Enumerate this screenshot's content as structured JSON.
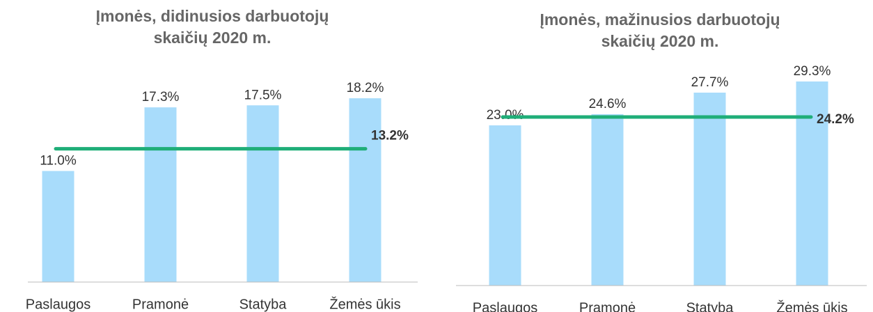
{
  "chart_data": [
    {
      "type": "bar",
      "title": [
        "Įmonės, didinusios darbuotojų",
        "skaičių 2020 m."
      ],
      "categories": [
        "Paslaugos",
        "Pramonė",
        "Statyba",
        "Žemės ūkis"
      ],
      "values": [
        11.0,
        17.3,
        17.5,
        18.2
      ],
      "value_labels": [
        "11.0%",
        "17.3%",
        "17.5%",
        "18.2%"
      ],
      "color": "#a8dcfb",
      "ylim": [
        0,
        22
      ],
      "average": {
        "value": 13.2,
        "label": "13.2%",
        "color": "#1fae78"
      }
    },
    {
      "type": "bar",
      "title": [
        "Įmonės, mažinusios darbuotojų",
        "skaičių 2020 m."
      ],
      "categories": [
        "Paslaugos",
        "Pramonė",
        "Statyba",
        "Žemės ūkis"
      ],
      "values": [
        23.0,
        24.6,
        27.7,
        29.3
      ],
      "value_labels": [
        "23.0%",
        "24.6%",
        "27.7%",
        "29.3%"
      ],
      "color": "#a8dcfb",
      "ylim": [
        0,
        32
      ],
      "average": {
        "value": 24.2,
        "label": "24.2%",
        "color": "#1fae78"
      }
    }
  ]
}
